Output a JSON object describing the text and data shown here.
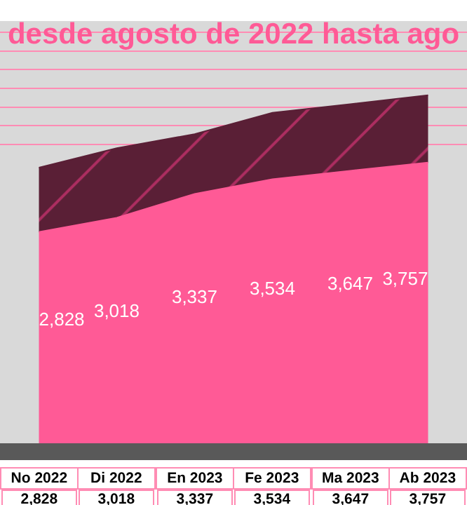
{
  "chart_data": {
    "type": "area",
    "title": "desde agosto de 2022 hasta ago",
    "stacked": true,
    "categories": [
      "No 2022",
      "Di 2022",
      "En 2023",
      "Fe 2023",
      "Ma 2023",
      "Ab 2023"
    ],
    "series": [
      {
        "color": "#ff5a96",
        "values": [
          2828,
          3018,
          3337,
          3534,
          3647,
          3757
        ],
        "value_labels": [
          "2,828",
          "3,018",
          "3,337",
          "3,534",
          "3,647",
          "3,757"
        ]
      },
      {
        "color": "#5a1f36",
        "values": [
          860,
          930,
          800,
          890,
          890,
          900
        ]
      }
    ],
    "ylim": [
      0,
      5650
    ],
    "yticks": [
      {
        "value": 4000,
        "label": null
      },
      {
        "value": 4250,
        "label": null
      },
      {
        "value": 4500,
        "label": null
      },
      {
        "value": 4750,
        "label": null
      },
      {
        "value": 5000,
        "label": null
      },
      {
        "value": 5250,
        "label": null
      },
      {
        "value": 5500,
        "label": null
      }
    ],
    "grid": "y",
    "tick_labels": false
  }
}
